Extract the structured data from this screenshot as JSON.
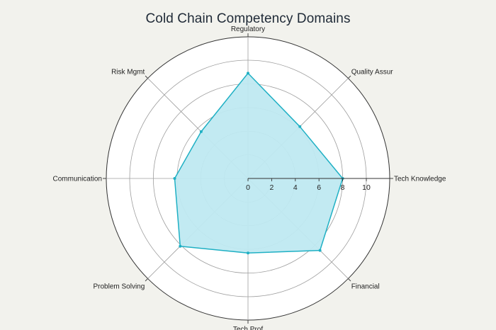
{
  "chart_data": {
    "type": "radar",
    "title": "Cold Chain Competency Domains",
    "categories": [
      "Tech Knowledge",
      "Quality Assur",
      "Regulatory",
      "Risk Mgmt",
      "Communication",
      "Problem Solving",
      "Tech Prof",
      "Financial"
    ],
    "series": [
      {
        "values": [
          8,
          6.2,
          8.9,
          5.6,
          6.2,
          8.1,
          6.3,
          8.6
        ]
      }
    ],
    "radial_range": [
      0,
      10
    ],
    "radial_ticks": [
      0,
      2,
      4,
      6,
      8,
      10
    ],
    "grid": true,
    "colors": {
      "fill": "#bfe9f1",
      "line": "#1fb0c4",
      "grid": "#9e9e9e",
      "outer": "#333333",
      "background": "#f2f2ed",
      "plot_background": "#ffffff"
    }
  }
}
